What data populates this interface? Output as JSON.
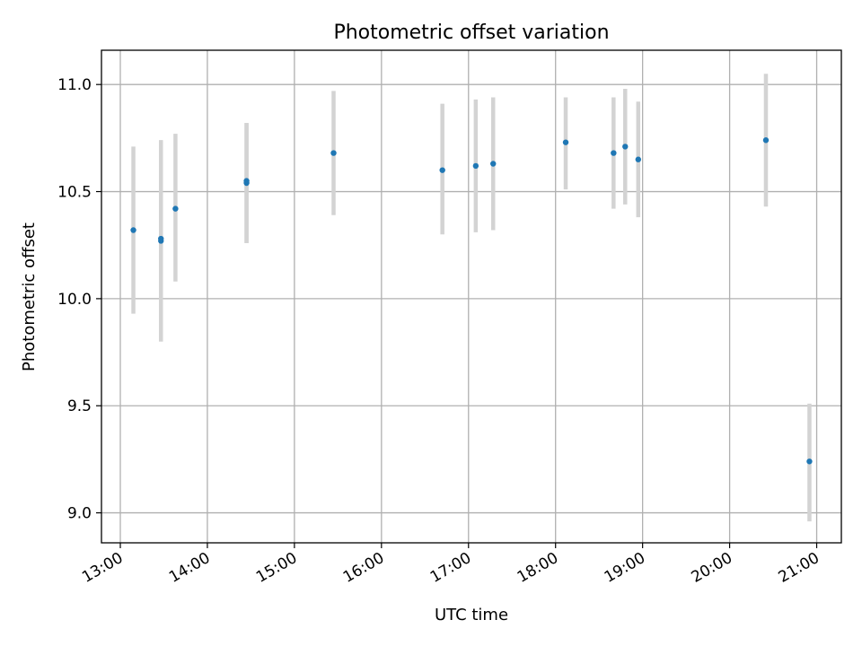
{
  "chart_data": {
    "type": "scatter",
    "title": "Photometric offset variation",
    "xlabel": "UTC time",
    "ylabel": "Photometric offset",
    "x_is_time": true,
    "xlim": [
      "12:47",
      "21:17"
    ],
    "ylim": [
      8.86,
      11.16
    ],
    "x_ticks": [
      "13:00",
      "14:00",
      "15:00",
      "16:00",
      "17:00",
      "18:00",
      "19:00",
      "20:00",
      "21:00"
    ],
    "y_ticks": [
      9.0,
      9.5,
      10.0,
      10.5,
      11.0
    ],
    "y_tick_labels": [
      "9.0",
      "9.5",
      "10.0",
      "10.5",
      "11.0"
    ],
    "grid": true,
    "colors": {
      "points": "#1f77b4",
      "error_bars": "#d3d3d3",
      "grid": "#b0b0b0"
    },
    "series": [
      {
        "points": [
          {
            "x": "13:09",
            "y": 10.32,
            "y_low": 9.93,
            "y_high": 10.71
          },
          {
            "x": "13:28",
            "y": 10.27,
            "y_low": 9.8,
            "y_high": 10.74
          },
          {
            "x": "13:28",
            "y": 10.28,
            "y_low": 9.8,
            "y_high": 10.74
          },
          {
            "x": "13:38",
            "y": 10.42,
            "y_low": 10.08,
            "y_high": 10.77
          },
          {
            "x": "14:27",
            "y": 10.54,
            "y_low": 10.26,
            "y_high": 10.82
          },
          {
            "x": "14:27",
            "y": 10.55,
            "y_low": 10.26,
            "y_high": 10.82
          },
          {
            "x": "15:27",
            "y": 10.68,
            "y_low": 10.39,
            "y_high": 10.97
          },
          {
            "x": "16:42",
            "y": 10.6,
            "y_low": 10.3,
            "y_high": 10.91
          },
          {
            "x": "17:05",
            "y": 10.62,
            "y_low": 10.31,
            "y_high": 10.93
          },
          {
            "x": "17:17",
            "y": 10.63,
            "y_low": 10.32,
            "y_high": 10.94
          },
          {
            "x": "18:07",
            "y": 10.73,
            "y_low": 10.51,
            "y_high": 10.94
          },
          {
            "x": "18:40",
            "y": 10.68,
            "y_low": 10.42,
            "y_high": 10.94
          },
          {
            "x": "18:48",
            "y": 10.71,
            "y_low": 10.44,
            "y_high": 10.98
          },
          {
            "x": "18:57",
            "y": 10.65,
            "y_low": 10.38,
            "y_high": 10.92
          },
          {
            "x": "20:25",
            "y": 10.74,
            "y_low": 10.43,
            "y_high": 11.05
          },
          {
            "x": "20:55",
            "y": 9.24,
            "y_low": 8.96,
            "y_high": 9.51
          }
        ]
      }
    ]
  }
}
